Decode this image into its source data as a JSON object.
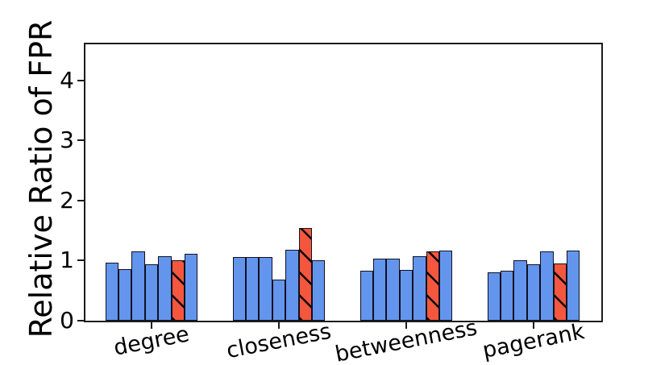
{
  "chart_data": {
    "type": "bar",
    "title": "",
    "xlabel": "",
    "ylabel": "Relative Ratio of FPR",
    "categories": [
      "degree",
      "closeness",
      "betweenness",
      "pagerank"
    ],
    "series": [
      {
        "name": "series-1",
        "color": "#6495ED",
        "hatch": false,
        "values": [
          0.97,
          1.06,
          0.83,
          0.8
        ]
      },
      {
        "name": "series-2",
        "color": "#6495ED",
        "hatch": false,
        "values": [
          0.86,
          1.06,
          1.03,
          0.83
        ]
      },
      {
        "name": "series-3",
        "color": "#6495ED",
        "hatch": false,
        "values": [
          1.15,
          1.06,
          1.03,
          1.01
        ]
      },
      {
        "name": "series-4",
        "color": "#6495ED",
        "hatch": false,
        "values": [
          0.94,
          0.68,
          0.85,
          0.94
        ]
      },
      {
        "name": "series-5",
        "color": "#6495ED",
        "hatch": false,
        "values": [
          1.07,
          1.18,
          1.07,
          1.15
        ]
      },
      {
        "name": "series-6-highlighted",
        "color": "#F4573D",
        "hatch": true,
        "values": [
          1.0,
          1.54,
          1.15,
          0.95
        ]
      },
      {
        "name": "series-7",
        "color": "#6495ED",
        "hatch": false,
        "values": [
          1.11,
          1.01,
          1.17,
          1.17
        ]
      }
    ],
    "yticks": [
      "0",
      "1",
      "2",
      "3",
      "4"
    ],
    "ylim": [
      0,
      4.6
    ],
    "grid": false,
    "legend": "none",
    "bar_edge_color": "#000000",
    "hatch_pattern": "\\",
    "colors": {
      "default_bar": "#6495ED",
      "highlight_bar": "#F4573D",
      "axis": "#1c1c1c",
      "background": "#ffffff"
    }
  }
}
